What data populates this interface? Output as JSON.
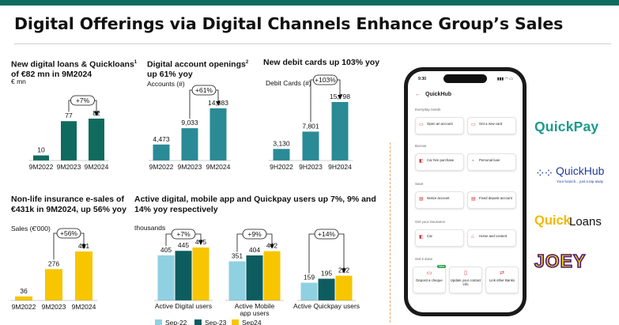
{
  "page": {
    "title": "Digital Offerings via Digital Channels Enhance Group’s Sales"
  },
  "colors": {
    "teal": "#0f6b5e",
    "sep22": "#8fd0e1",
    "sep23": "#0d5c60",
    "sep24": "#f7c600",
    "growth_annotation": "#111111"
  },
  "chart_data": [
    {
      "type": "bar",
      "title_line1": "New digital loans & Quickloans",
      "title_sup": "1",
      "title_line2": "of €82 mn in 9M2024",
      "ylabel": "€ mn",
      "categories": [
        "9M2022",
        "9M2023",
        "9M2024"
      ],
      "values": [
        10,
        77,
        82
      ],
      "value_labels": [
        "10",
        "77",
        "82"
      ],
      "annotation": "+7%"
    },
    {
      "type": "bar",
      "title_line1": "Digital account openings",
      "title_sup": "2",
      "title_line2": "up 61% yoy",
      "ylabel": "Accounts (#)",
      "categories": [
        "9M2022",
        "9M2023",
        "9M2024"
      ],
      "values": [
        4473,
        9033,
        14583
      ],
      "value_labels": [
        "4,473",
        "9,033",
        "14,583"
      ],
      "annotation": "+61%"
    },
    {
      "type": "bar",
      "title_line1": "New debit cards up 103% yoy",
      "ylabel": "Debit Cards (#)",
      "categories": [
        "9H2022",
        "9H2023",
        "9H2024"
      ],
      "values": [
        3130,
        7801,
        15798
      ],
      "value_labels": [
        "3,130",
        "7,801",
        "15,798"
      ],
      "annotation": "+103%"
    },
    {
      "type": "bar",
      "title_line1": "Non-life insurance e-sales of",
      "title_line2": "€431k in 9M2024, up 56% yoy",
      "ylabel": "Sales (€'000)",
      "categories": [
        "9M2022",
        "9M2023",
        "9M2024"
      ],
      "values": [
        36,
        276,
        431
      ],
      "value_labels": [
        "36",
        "276",
        "431"
      ],
      "annotation": "+56%"
    },
    {
      "type": "bar",
      "title_line1": "Active digital, mobile app and Quickpay users up 7%, 9% and",
      "title_line2": "14% yoy respectively",
      "ylabel": "thousands",
      "legend_position": "bottom",
      "categories": [
        "Active Digital users",
        "Active Mobile app users",
        "Active Quickpay users"
      ],
      "category_label_lines": [
        [
          "Active Digital users"
        ],
        [
          "Active Mobile",
          "app users"
        ],
        [
          "Active Quickpay users"
        ]
      ],
      "series": [
        {
          "name": "Sep-22",
          "values": [
            405,
            351,
            159
          ]
        },
        {
          "name": "Sep-23",
          "values": [
            445,
            404,
            195
          ]
        },
        {
          "name": "Sep24",
          "values": [
            475,
            442,
            222
          ]
        }
      ],
      "annotations": [
        "+7%",
        "+9%",
        "+14%"
      ]
    }
  ],
  "phone": {
    "status_time": "9:30",
    "status_icons": "▮▮▮ ◠ ▭",
    "back_icon": "←",
    "app_title": "QuickHub",
    "sections": [
      {
        "title": "Everyday needs",
        "tiles": [
          {
            "label": "Open an account",
            "icon": "▭"
          },
          {
            "label": "Get a new card",
            "icon": "▭"
          }
        ]
      },
      {
        "title": "Borrow",
        "tiles": [
          {
            "label": "Car hire purchase",
            "icon": "◧"
          },
          {
            "label": "Personal loan",
            "icon": "◔"
          }
        ]
      },
      {
        "title": "Save",
        "tiles": [
          {
            "label": "Notice account",
            "icon": "▤"
          },
          {
            "label": "Fixed deposit account",
            "icon": "▤"
          }
        ]
      },
      {
        "title": "Get your insurance",
        "tiles": [
          {
            "label": "Car",
            "icon": "◧"
          },
          {
            "label": "Home and content",
            "icon": "⌂"
          }
        ]
      },
      {
        "title": "Get it done",
        "tiles": [
          {
            "label": "Deposit a cheque",
            "icon": "▭"
          },
          {
            "label": "Update your contact info",
            "icon": "▯"
          },
          {
            "label": "Link other Banks",
            "icon": "⇄"
          }
        ]
      }
    ],
    "new_badge": "New"
  },
  "logos": {
    "quickpay": "QuickPay",
    "quickhub": "QuickHub",
    "quickhub_tagline": "Your branch... just a tap away",
    "quickloans_a": "Quick",
    "quickloans_b": "Loans",
    "joey": "JOEY"
  }
}
